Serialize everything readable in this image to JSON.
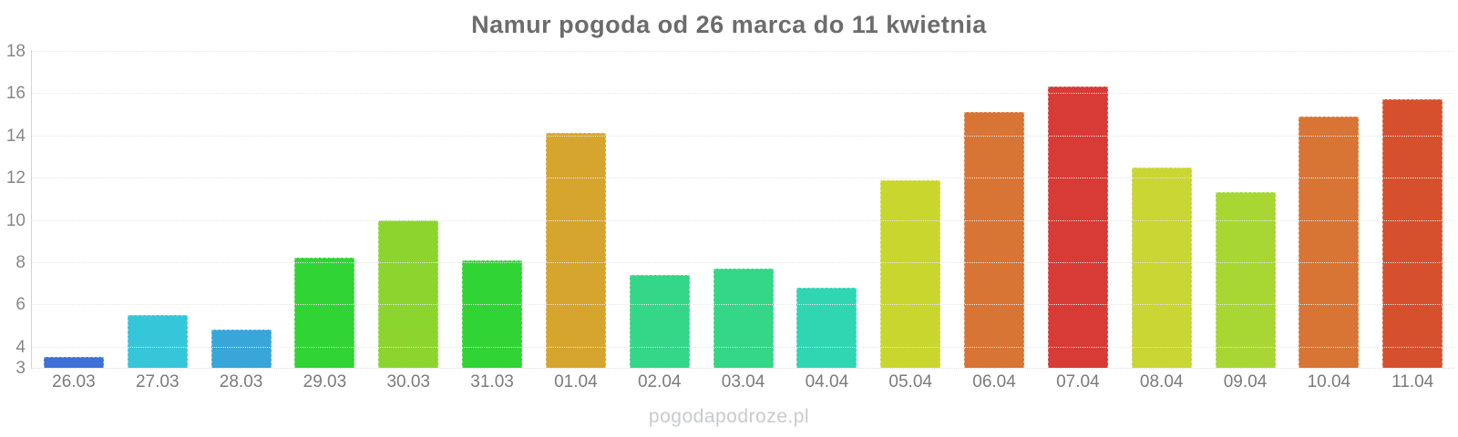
{
  "chart_data": {
    "type": "bar",
    "title": "Namur pogoda od 26 marca do 11 kwietnia",
    "categories": [
      "26.03",
      "27.03",
      "28.03",
      "29.03",
      "30.03",
      "31.03",
      "01.04",
      "02.04",
      "03.04",
      "04.04",
      "05.04",
      "06.04",
      "07.04",
      "08.04",
      "09.04",
      "10.04",
      "11.04"
    ],
    "values": [
      3.5,
      5.5,
      4.8,
      8.2,
      10.0,
      8.1,
      14.1,
      7.4,
      7.7,
      6.8,
      11.9,
      15.1,
      16.3,
      12.5,
      11.3,
      14.9,
      15.7
    ],
    "bar_colors": [
      "#3e70d6",
      "#36c6da",
      "#38a6d8",
      "#30d434",
      "#8cd42e",
      "#30d434",
      "#d6a52e",
      "#34d687",
      "#34d687",
      "#30d5b2",
      "#c9d62e",
      "#d87434",
      "#d83a36",
      "#c9d633",
      "#a8d633",
      "#d87434",
      "#d6502e"
    ],
    "xlabel": "",
    "ylabel": "",
    "ylim": [
      3,
      18
    ],
    "yticks": [
      3,
      4,
      6,
      8,
      10,
      12,
      14,
      16,
      18
    ],
    "grid": true,
    "legend": false
  },
  "watermark": "pogodapodroze.pl",
  "colors": {
    "title_text": "#6c6c6c",
    "axis_line": "#d4d4d4",
    "gridline": "#e7e7e7",
    "tick_text": "#7b7b7b",
    "watermark_text": "#c7cbce",
    "background": "#ffffff"
  }
}
